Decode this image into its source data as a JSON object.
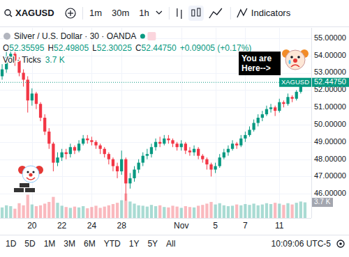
{
  "toolbar": {
    "symbol": "XAGUSD",
    "intervals": [
      "1m",
      "30m",
      "1h"
    ],
    "indicators": "Indicators"
  },
  "legend_header": {
    "ohlc": [
      {
        "label": "O",
        "value": "52.35595"
      },
      {
        "label": "H",
        "value": "52.49805"
      },
      {
        "label": "L",
        "value": "52.30025"
      },
      {
        "label": "C",
        "value": "52.44750"
      }
    ],
    "change": "+0.09005 (+0.17%)",
    "volume_value": "3.7 K"
  },
  "price_tags": {
    "price": "52.44750",
    "volume": "3.7 K"
  },
  "footer": {
    "ranges": [
      "1D",
      "5D",
      "1M",
      "3M",
      "6M",
      "YTD",
      "1Y",
      "5Y",
      "All"
    ],
    "time": "10:09:06 UTC-5"
  },
  "chart_data": {
    "type": "candlestick",
    "title": "Silver / U.S. Dollar · 30 · OANDA",
    "categories": [
      null,
      null,
      null,
      null,
      null,
      null,
      null,
      "20",
      null,
      null,
      null,
      null,
      null,
      null,
      "22",
      null,
      null,
      null,
      null,
      null,
      null,
      "24",
      null,
      null,
      null,
      null,
      null,
      null,
      "28",
      null,
      null,
      null,
      null,
      null,
      null,
      null,
      null,
      null,
      null,
      null,
      null,
      null,
      "Nov",
      null,
      null,
      null,
      null,
      null,
      null,
      null,
      "5",
      null,
      null,
      null,
      null,
      null,
      null,
      "7",
      null,
      null,
      null,
      null,
      null,
      null,
      null,
      "11",
      null,
      null,
      null,
      null,
      null,
      null
    ],
    "series": [
      {
        "name": "XAGUSD",
        "open": [
          52.8,
          53.2,
          53.9,
          54.1,
          53.7,
          53.0,
          52.6,
          51.4,
          51.8,
          51.2,
          50.4,
          49.6,
          48.9,
          47.8,
          48.1,
          48.4,
          48.3,
          48.7,
          48.5,
          48.9,
          49.2,
          49.1,
          49.0,
          48.8,
          48.6,
          48.3,
          48.0,
          47.6,
          47.3,
          48.0,
          46.6,
          46.9,
          47.4,
          47.8,
          48.2,
          48.3,
          48.7,
          49.0,
          48.9,
          49.2,
          49.1,
          48.9,
          48.7,
          48.9,
          48.5,
          48.4,
          48.6,
          48.2,
          48.0,
          47.7,
          47.4,
          47.6,
          48.1,
          48.4,
          48.6,
          48.9,
          48.8,
          49.2,
          49.4,
          49.7,
          50.1,
          50.4,
          50.6,
          50.9,
          51.0,
          50.8,
          51.3,
          51.2,
          51.6,
          51.5,
          51.9,
          52.35595
        ],
        "high": [
          53.5,
          54.3,
          54.5,
          54.3,
          53.9,
          53.2,
          52.8,
          52.1,
          51.9,
          51.3,
          50.6,
          49.8,
          49.0,
          48.4,
          48.6,
          48.6,
          48.9,
          48.8,
          49.1,
          49.4,
          49.4,
          49.3,
          49.1,
          48.9,
          48.7,
          48.4,
          48.1,
          47.8,
          48.5,
          48.1,
          47.2,
          47.6,
          48.0,
          48.4,
          48.6,
          48.9,
          49.2,
          49.3,
          49.4,
          49.4,
          49.2,
          49.0,
          49.1,
          49.0,
          48.7,
          48.8,
          48.7,
          48.3,
          48.1,
          47.8,
          47.8,
          48.3,
          48.6,
          48.8,
          49.1,
          49.0,
          49.4,
          49.6,
          49.9,
          50.3,
          50.6,
          50.8,
          51.1,
          51.2,
          51.1,
          51.5,
          51.4,
          51.8,
          51.7,
          52.0,
          52.4,
          52.49805
        ],
        "low": [
          52.6,
          53.0,
          53.6,
          53.4,
          52.8,
          52.2,
          50.7,
          51.1,
          50.9,
          50.2,
          49.4,
          48.6,
          47.3,
          47.6,
          47.9,
          48.0,
          48.1,
          48.3,
          48.4,
          48.8,
          48.9,
          48.8,
          48.6,
          48.3,
          48.1,
          47.7,
          47.3,
          46.9,
          47.1,
          45.6,
          46.3,
          46.7,
          47.2,
          47.6,
          48.0,
          48.1,
          48.5,
          48.7,
          48.8,
          48.9,
          48.7,
          48.5,
          48.5,
          48.3,
          48.2,
          48.2,
          48.0,
          47.8,
          47.4,
          47.0,
          47.2,
          47.5,
          48.0,
          48.2,
          48.5,
          48.6,
          48.7,
          49.0,
          49.3,
          49.6,
          49.9,
          50.2,
          50.5,
          50.7,
          50.5,
          50.7,
          51.0,
          51.1,
          51.3,
          51.4,
          51.8,
          52.30025
        ],
        "close": [
          53.2,
          53.9,
          54.1,
          53.7,
          53.0,
          52.6,
          51.4,
          51.8,
          51.2,
          50.4,
          49.6,
          48.9,
          47.8,
          48.1,
          48.4,
          48.3,
          48.7,
          48.5,
          48.9,
          49.2,
          49.1,
          49.0,
          48.8,
          48.6,
          48.3,
          48.0,
          47.6,
          47.3,
          48.0,
          46.6,
          46.9,
          47.4,
          47.8,
          48.2,
          48.3,
          48.7,
          49.0,
          48.9,
          49.2,
          49.1,
          48.9,
          48.7,
          48.9,
          48.5,
          48.4,
          48.6,
          48.2,
          48.0,
          47.7,
          47.4,
          47.6,
          48.1,
          48.4,
          48.6,
          48.9,
          48.8,
          49.2,
          49.4,
          49.7,
          50.1,
          50.4,
          50.6,
          50.9,
          51.0,
          50.8,
          51.3,
          51.2,
          51.6,
          51.5,
          51.9,
          52.36,
          52.4475
        ]
      },
      {
        "name": "Vol · Ticks",
        "type": "bar",
        "axis": "y2",
        "values": [
          2.5,
          3.0,
          2.8,
          2.2,
          3.5,
          3.0,
          5.5,
          3.2,
          2.8,
          3.0,
          3.4,
          3.8,
          5.0,
          3.6,
          2.9,
          2.6,
          2.4,
          2.7,
          2.5,
          2.8,
          2.3,
          2.6,
          2.9,
          2.4,
          2.7,
          3.0,
          3.3,
          3.6,
          4.2,
          5.8,
          3.9,
          3.4,
          3.0,
          2.9,
          2.7,
          3.1,
          2.8,
          3.0,
          2.6,
          2.5,
          2.9,
          2.7,
          2.4,
          2.8,
          2.6,
          2.5,
          2.9,
          3.1,
          3.4,
          3.8,
          3.2,
          3.5,
          3.0,
          2.8,
          2.9,
          3.2,
          3.0,
          3.3,
          3.1,
          3.4,
          3.0,
          3.2,
          3.5,
          3.3,
          3.6,
          3.4,
          3.1,
          3.5,
          3.2,
          3.6,
          3.9,
          3.7
        ]
      }
    ],
    "ylim": [
      44.6,
      55.6
    ],
    "yticks": [
      {
        "value": 46,
        "label": "46.00000"
      },
      {
        "value": 47,
        "label": "47.00000"
      },
      {
        "value": 48,
        "label": "48.00000"
      },
      {
        "value": 49,
        "label": "49.00000"
      },
      {
        "value": 50,
        "label": "50.00000"
      },
      {
        "value": 51,
        "label": "51.00000"
      },
      {
        "value": 52,
        "label": "52.00000"
      },
      {
        "value": 53,
        "label": "53.00000"
      },
      {
        "value": 54,
        "label": "54.00000"
      },
      {
        "value": 55,
        "label": "55.00000"
      }
    ],
    "y2lim": [
      0,
      45
    ],
    "grid": true,
    "annotations": [
      "You are Here-->"
    ]
  }
}
